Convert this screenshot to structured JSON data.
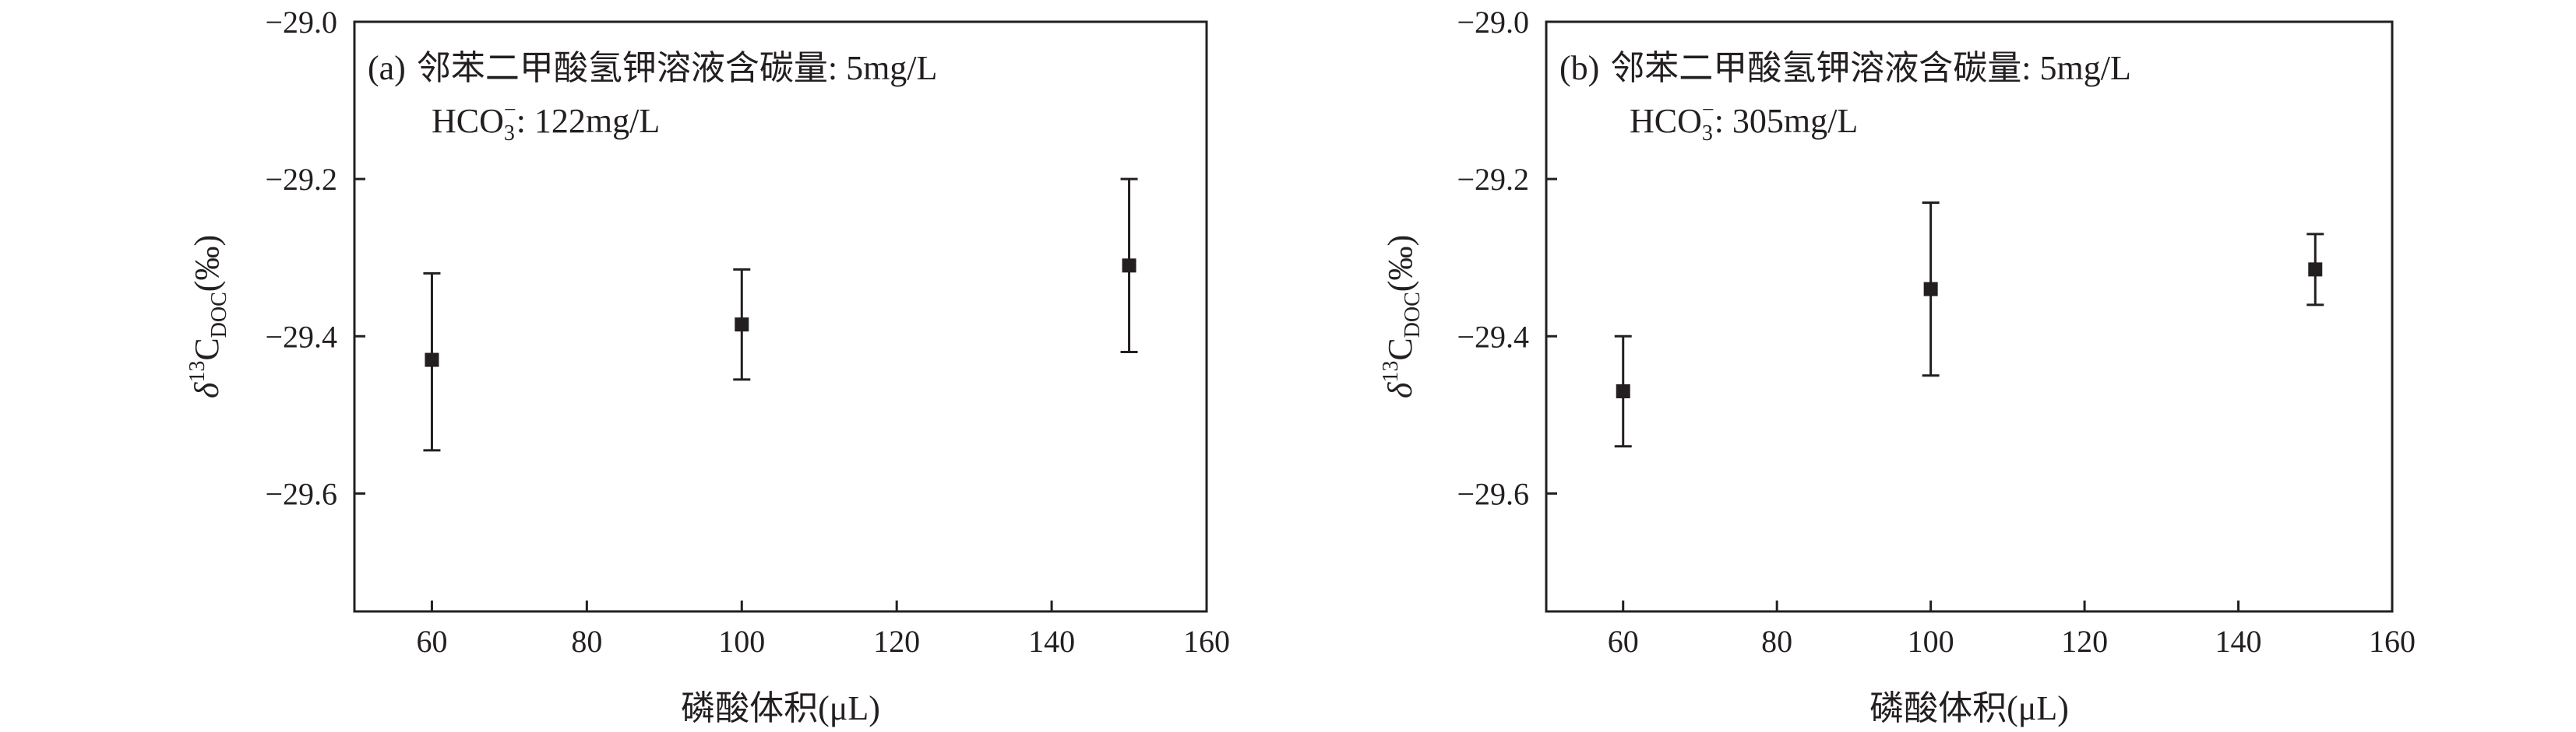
{
  "chart_data": [
    {
      "type": "scatter",
      "panel_label": "(a)",
      "annotation_line1": "邻苯二甲酸氢钾溶液含碳量: 5mg/L",
      "annotation_line2_main": "HCO",
      "annotation_line2_sub": "3",
      "annotation_line2_sup": "−",
      "annotation_line2_value": ": 122mg/L",
      "xlabel": "磷酸体积(μL)",
      "ylabel_delta": "δ",
      "ylabel_sup": "13",
      "ylabel_c": "C",
      "ylabel_sub": "DOC",
      "ylabel_unit": "(‰)",
      "xlim": [
        50,
        160
      ],
      "ylim": [
        -29.75,
        -29.0
      ],
      "y_reversed": true,
      "xticks": [
        60,
        80,
        100,
        120,
        140,
        160
      ],
      "xtick_labels": [
        "60",
        "80",
        "100",
        "120",
        "140",
        "160"
      ],
      "yticks": [
        -29.0,
        -29.2,
        -29.4,
        -29.6
      ],
      "ytick_labels": [
        "−29.0",
        "−29.2",
        "−29.4",
        "−29.6"
      ],
      "points": [
        {
          "x": 60,
          "y": -29.43,
          "err_low": -29.545,
          "err_high": -29.32
        },
        {
          "x": 100,
          "y": -29.385,
          "err_low": -29.455,
          "err_high": -29.315
        },
        {
          "x": 150,
          "y": -29.31,
          "err_low": -29.42,
          "err_high": -29.2
        }
      ]
    },
    {
      "type": "scatter",
      "panel_label": "(b)",
      "annotation_line1": "邻苯二甲酸氢钾溶液含碳量: 5mg/L",
      "annotation_line2_main": "HCO",
      "annotation_line2_sub": "3",
      "annotation_line2_sup": "−",
      "annotation_line2_value": ": 305mg/L",
      "xlabel": "磷酸体积(μL)",
      "ylabel_delta": "δ",
      "ylabel_sup": "13",
      "ylabel_c": "C",
      "ylabel_sub": "DOC",
      "ylabel_unit": "(‰)",
      "xlim": [
        50,
        160
      ],
      "ylim": [
        -29.75,
        -29.0
      ],
      "y_reversed": true,
      "xticks": [
        60,
        80,
        100,
        120,
        140,
        160
      ],
      "xtick_labels": [
        "60",
        "80",
        "100",
        "120",
        "140",
        "160"
      ],
      "yticks": [
        -29.0,
        -29.2,
        -29.4,
        -29.6
      ],
      "ytick_labels": [
        "−29.0",
        "−29.2",
        "−29.4",
        "−29.6"
      ],
      "points": [
        {
          "x": 60,
          "y": -29.47,
          "err_low": -29.54,
          "err_high": -29.4
        },
        {
          "x": 100,
          "y": -29.34,
          "err_low": -29.45,
          "err_high": -29.23
        },
        {
          "x": 150,
          "y": -29.315,
          "err_low": -29.36,
          "err_high": -29.27
        }
      ]
    }
  ]
}
